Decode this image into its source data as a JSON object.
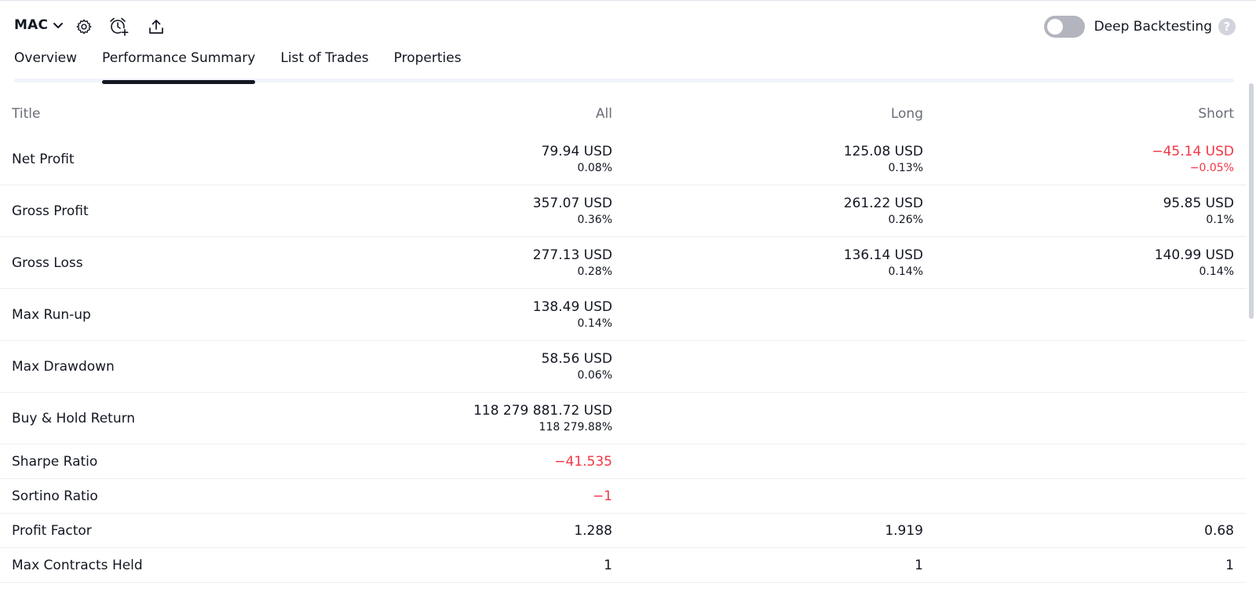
{
  "toolbar": {
    "symbol": "MAC",
    "icons": [
      "chevron-down-icon",
      "gear-icon",
      "alarm-add-icon",
      "export-icon"
    ],
    "deep_backtesting_label": "Deep Backtesting",
    "deep_backtesting_on": false,
    "help_glyph": "?"
  },
  "tabs": [
    {
      "label": "Overview",
      "active": false
    },
    {
      "label": "Performance Summary",
      "active": true
    },
    {
      "label": "List of Trades",
      "active": false
    },
    {
      "label": "Properties",
      "active": false
    }
  ],
  "table": {
    "headers": {
      "title": "Title",
      "all": "All",
      "long": "Long",
      "short": "Short"
    },
    "rows": [
      {
        "title": "Net Profit",
        "all": {
          "value": "79.94 USD",
          "pct": "0.08%"
        },
        "long": {
          "value": "125.08 USD",
          "pct": "0.13%"
        },
        "short": {
          "value": "−45.14 USD",
          "pct": "−0.05%"
        }
      },
      {
        "title": "Gross Profit",
        "all": {
          "value": "357.07 USD",
          "pct": "0.36%"
        },
        "long": {
          "value": "261.22 USD",
          "pct": "0.26%"
        },
        "short": {
          "value": "95.85 USD",
          "pct": "0.1%"
        }
      },
      {
        "title": "Gross Loss",
        "all": {
          "value": "277.13 USD",
          "pct": "0.28%"
        },
        "long": {
          "value": "136.14 USD",
          "pct": "0.14%"
        },
        "short": {
          "value": "140.99 USD",
          "pct": "0.14%"
        }
      },
      {
        "title": "Max Run-up",
        "all": {
          "value": "138.49 USD",
          "pct": "0.14%"
        }
      },
      {
        "title": "Max Drawdown",
        "all": {
          "value": "58.56 USD",
          "pct": "0.06%"
        }
      },
      {
        "title": "Buy & Hold Return",
        "all": {
          "value": "118 279 881.72 USD",
          "pct": "118 279.88%"
        }
      },
      {
        "title": "Sharpe Ratio",
        "all": {
          "value": "−41.535"
        }
      },
      {
        "title": "Sortino Ratio",
        "all": {
          "value": "−1"
        }
      },
      {
        "title": "Profit Factor",
        "all": {
          "value": "1.288"
        },
        "long": {
          "value": "1.919"
        },
        "short": {
          "value": "0.68"
        }
      },
      {
        "title": "Max Contracts Held",
        "all": {
          "value": "1"
        },
        "long": {
          "value": "1"
        },
        "short": {
          "value": "1"
        }
      }
    ]
  },
  "colors": {
    "negative": "#f23645",
    "text": "#131722",
    "muted": "#6a6d78"
  }
}
